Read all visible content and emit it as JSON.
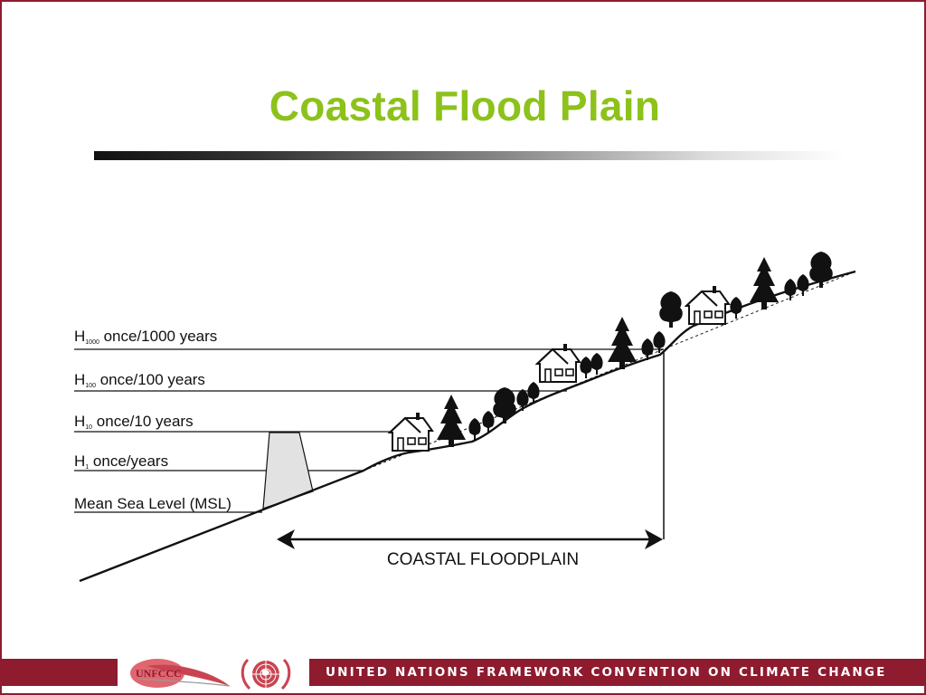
{
  "slide": {
    "title": "Coastal Flood Plain"
  },
  "diagram": {
    "levels": [
      {
        "symbol": "H",
        "subscript": "1000",
        "text": " once/1000 years"
      },
      {
        "symbol": "H",
        "subscript": "100",
        "text": " once/100 years"
      },
      {
        "symbol": "H",
        "subscript": "10",
        "text": " once/10 years"
      },
      {
        "symbol": "H",
        "subscript": "1",
        "text": " once/years"
      },
      {
        "symbol": "",
        "subscript": "",
        "text": "Mean Sea Level (MSL)"
      }
    ],
    "floodplain_label": "COASTAL FLOODPLAIN"
  },
  "footer": {
    "logo_text": "UNFCCC",
    "text": "UNITED NATIONS FRAMEWORK CONVENTION ON CLIMATE CHANGE",
    "band_color": "#8e1b2e"
  },
  "colors": {
    "title": "#8cc21a",
    "border": "#8e1b2e"
  }
}
